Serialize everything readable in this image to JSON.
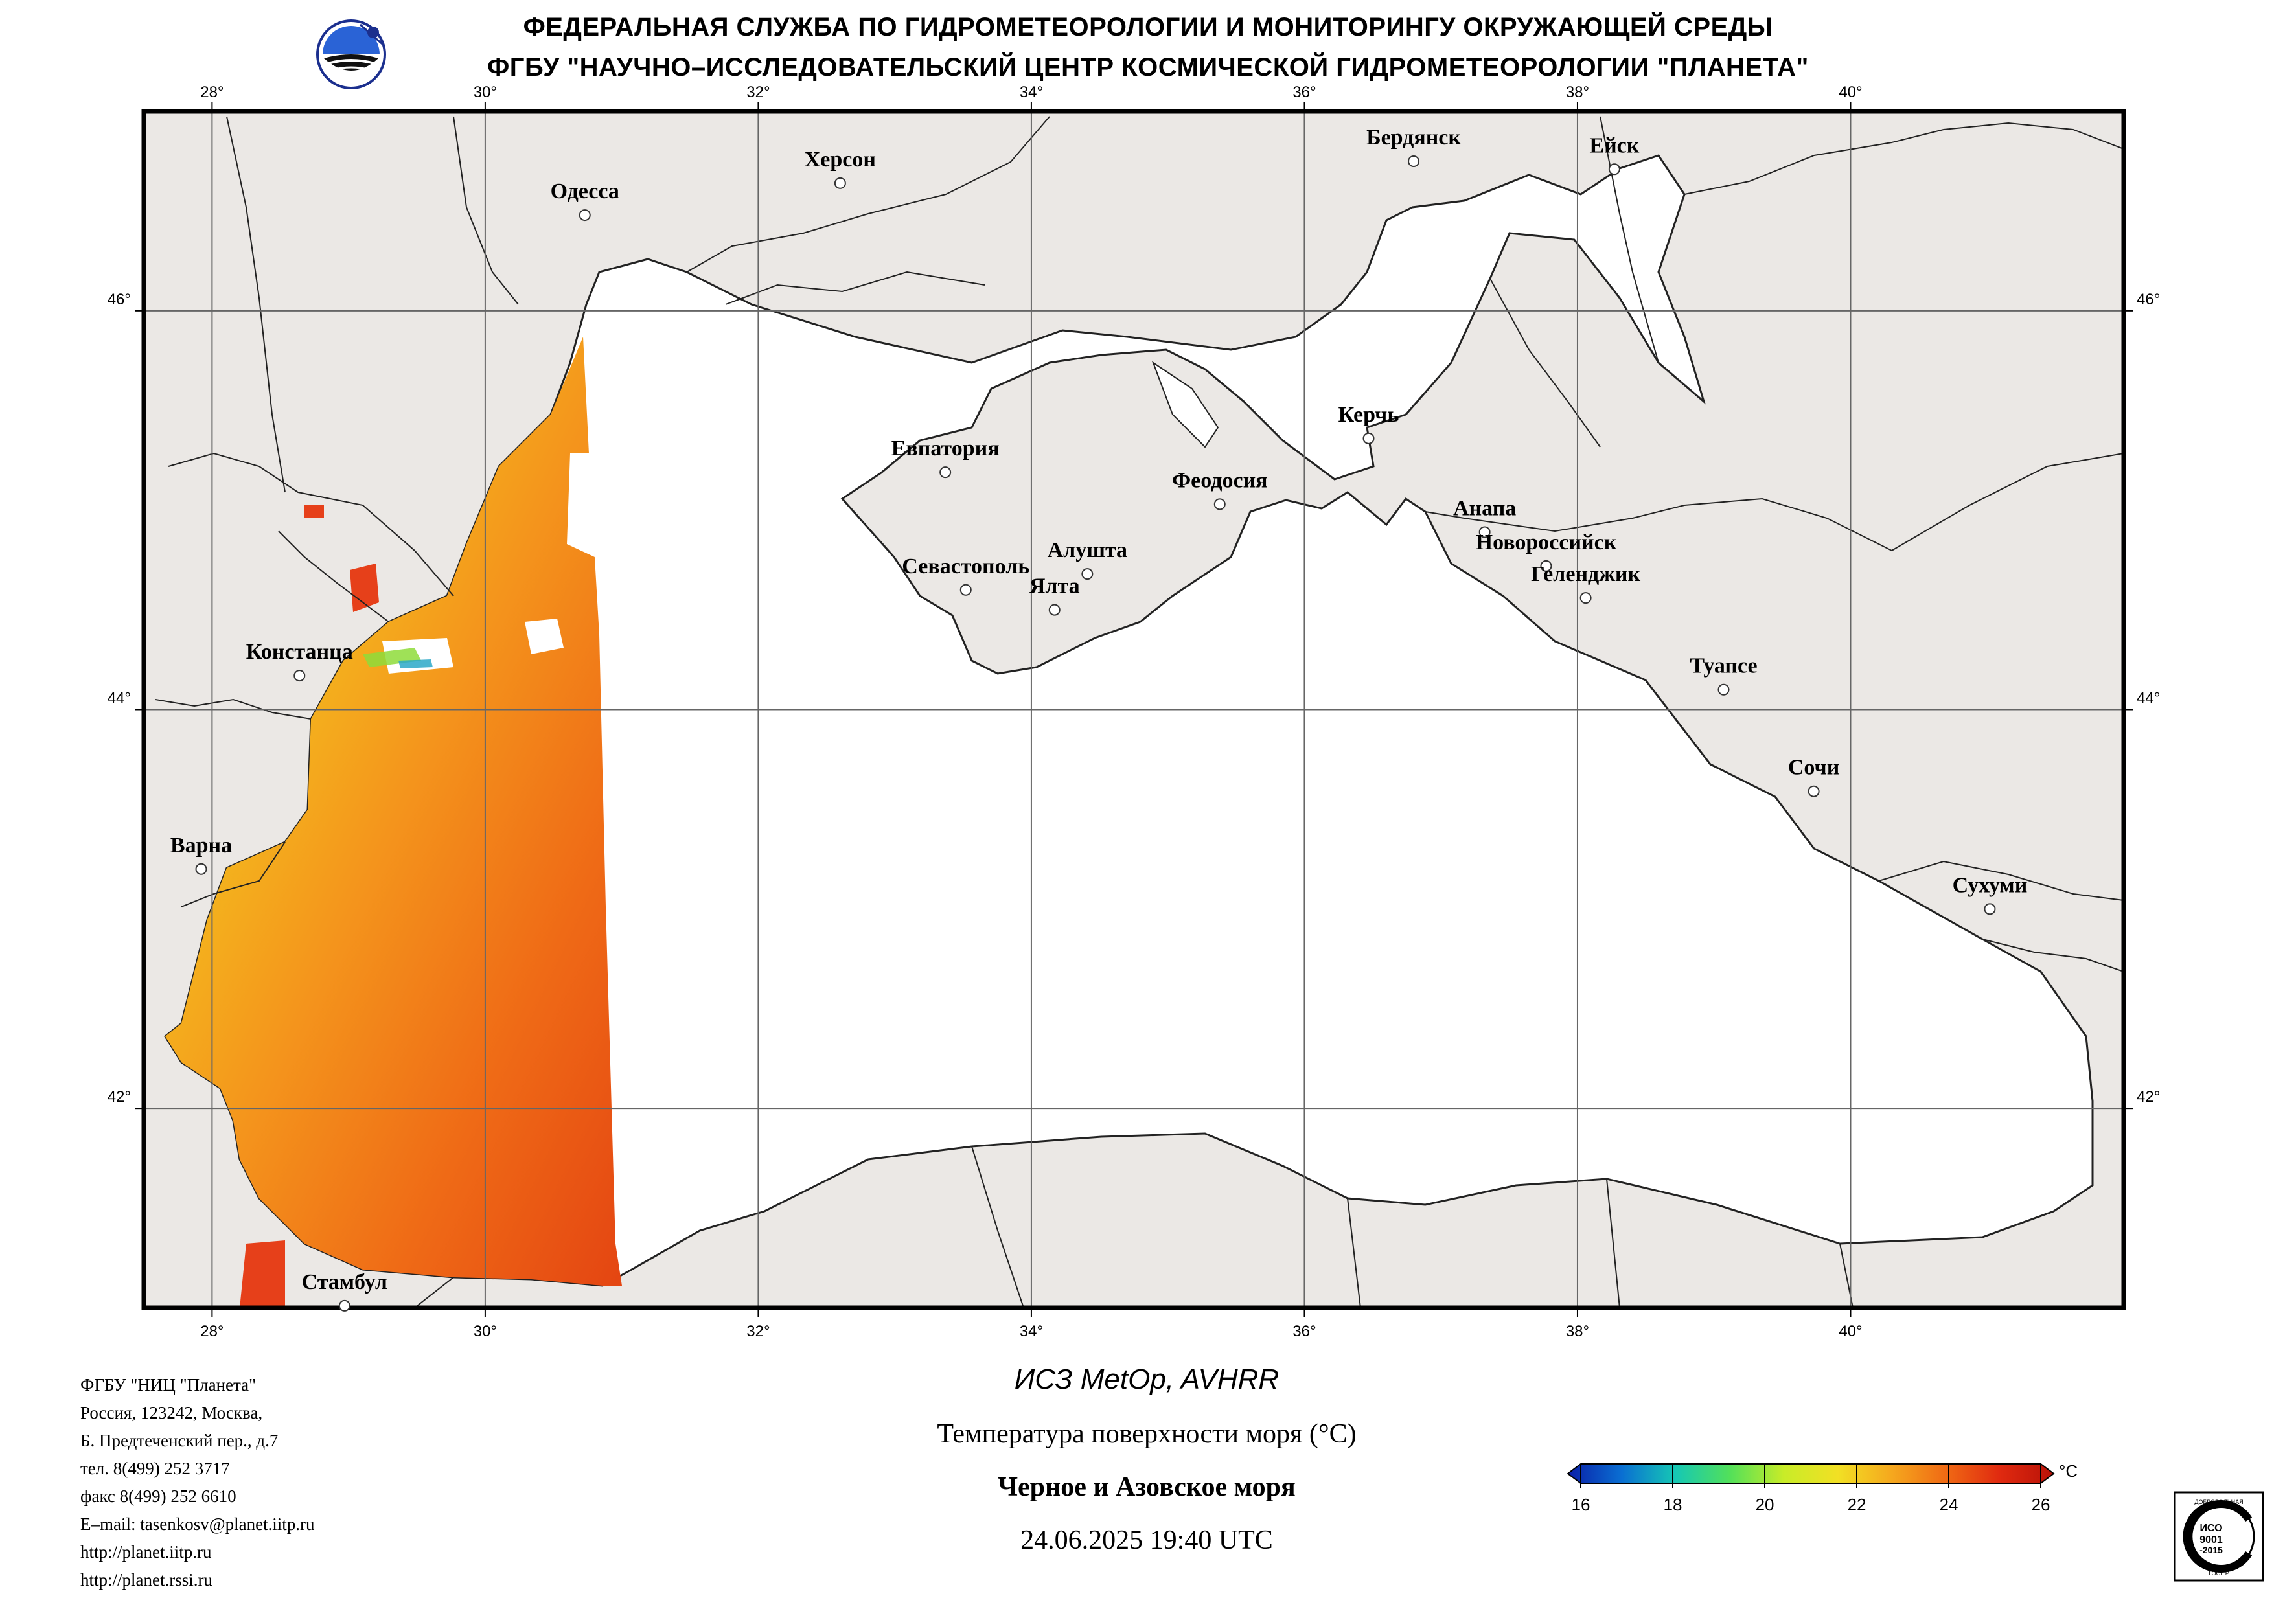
{
  "header": {
    "line1": "ФЕДЕРАЛЬНАЯ СЛУЖБА ПО ГИДРОМЕТЕОРОЛОГИИ И МОНИТОРИНГУ ОКРУЖАЮЩЕЙ СРЕДЫ",
    "line2": "ФГБУ \"НАУЧНО–ИССЛЕДОВАТЕЛЬСКИЙ ЦЕНТР КОСМИЧЕСКОЙ ГИДРОМЕТЕОРОЛОГИИ \"ПЛАНЕТА\""
  },
  "logos": {
    "org_logo_icon": "planeta-globe-logo",
    "iso_icon": "iso-9001-certification-badge",
    "iso_text": [
      "ДОБРОВОЛЬНАЯ",
      "ИСО",
      "9001",
      "-2015",
      "ГОСТ Р"
    ]
  },
  "map": {
    "region": "Черное и Азовское моря",
    "lon_range": [
      27.5,
      42.0
    ],
    "lat_range": [
      41.0,
      47.0
    ],
    "lon_ticks": [
      "28°",
      "30°",
      "32°",
      "34°",
      "36°",
      "38°",
      "40°"
    ],
    "lat_ticks": [
      "46°",
      "44°",
      "42°"
    ],
    "colors": {
      "land": "#ebe8e5",
      "water_nodata": "#ffffff",
      "coast": "#222222",
      "grid": "#666666"
    },
    "cities": [
      {
        "name": "Одесса",
        "lon": 30.73,
        "lat": 46.48
      },
      {
        "name": "Херсон",
        "lon": 32.6,
        "lat": 46.64
      },
      {
        "name": "Бердянск",
        "lon": 36.8,
        "lat": 46.75
      },
      {
        "name": "Ейск",
        "lon": 38.27,
        "lat": 46.71
      },
      {
        "name": "Евпатория",
        "lon": 33.37,
        "lat": 45.19
      },
      {
        "name": "Керчь",
        "lon": 36.47,
        "lat": 45.36
      },
      {
        "name": "Феодосия",
        "lon": 35.38,
        "lat": 45.03
      },
      {
        "name": "Анапа",
        "lon": 37.32,
        "lat": 44.89
      },
      {
        "name": "Новороссийск",
        "lon": 37.77,
        "lat": 44.72
      },
      {
        "name": "Геленджик",
        "lon": 38.06,
        "lat": 44.56
      },
      {
        "name": "Севастополь",
        "lon": 33.52,
        "lat": 44.6
      },
      {
        "name": "Алушта",
        "lon": 34.41,
        "lat": 44.68
      },
      {
        "name": "Ялта",
        "lon": 34.17,
        "lat": 44.5
      },
      {
        "name": "Констанца",
        "lon": 28.64,
        "lat": 44.17
      },
      {
        "name": "Туапсе",
        "lon": 39.07,
        "lat": 44.1
      },
      {
        "name": "Сочи",
        "lon": 39.73,
        "lat": 43.59
      },
      {
        "name": "Варна",
        "lon": 27.92,
        "lat": 43.2
      },
      {
        "name": "Сухуми",
        "lon": 41.02,
        "lat": 43.0
      },
      {
        "name": "Стамбул",
        "lon": 28.97,
        "lat": 41.01
      }
    ]
  },
  "footer_left": [
    "ФГБУ \"НИЦ \"Планета\"",
    "Россия, 123242, Москва,",
    "Б. Предтеченский пер., д.7",
    "тел. 8(499) 252 3717",
    "факс 8(499) 252 6610",
    "E–mail: tasenkosv@planet.iitp.ru",
    "http://planet.iitp.ru",
    "http://planet.rssi.ru"
  ],
  "caption": {
    "satellite": "ИСЗ MetOp, AVHRR",
    "parameter": "Температура поверхности моря (°С)",
    "region": "Черное и Азовское моря",
    "datetime": "24.06.2025 19:40 UTC"
  },
  "colorbar": {
    "unit": "°C",
    "min": 16,
    "max": 26,
    "ticks": [
      "16",
      "18",
      "20",
      "22",
      "24",
      "26"
    ],
    "stops": [
      "#0a1ea8",
      "#0a6fd2",
      "#16c8b4",
      "#52e05a",
      "#c8ec28",
      "#f2e024",
      "#f5a81e",
      "#f06a14",
      "#e02a10",
      "#b81208"
    ]
  }
}
